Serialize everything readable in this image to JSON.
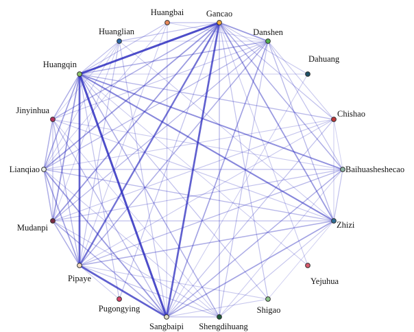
{
  "nodes": [
    {
      "id": "gancao",
      "label": "Gancao",
      "color": "#f2a93b"
    },
    {
      "id": "danshen",
      "label": "Danshen",
      "color": "#53b04f"
    },
    {
      "id": "dahuang",
      "label": "Dahuang",
      "color": "#1d4f66"
    },
    {
      "id": "chishao",
      "label": "Chishao",
      "color": "#c0393b"
    },
    {
      "id": "baihuasheshecao",
      "label": "Baihuasheshecao",
      "color": "#8fb7a6"
    },
    {
      "id": "zhizi",
      "label": "Zhizi",
      "color": "#2f6f95"
    },
    {
      "id": "yejuhua",
      "label": "Yejuhua",
      "color": "#d85a6c"
    },
    {
      "id": "shigao",
      "label": "Shigao",
      "color": "#8cc48c"
    },
    {
      "id": "shengdihuang",
      "label": "Shengdihuang",
      "color": "#1f5c3c"
    },
    {
      "id": "sangbaipi",
      "label": "Sangbaipi",
      "color": "#e3e0c8"
    },
    {
      "id": "pugongying",
      "label": "Pugongying",
      "color": "#d8456a"
    },
    {
      "id": "pipaye",
      "label": "Pipaye",
      "color": "#f2dcc0"
    },
    {
      "id": "mudanpi",
      "label": "Mudanpi",
      "color": "#7a2a44"
    },
    {
      "id": "lianqiao",
      "label": "Lianqiao",
      "color": "#e8ede4"
    },
    {
      "id": "jinyinhua",
      "label": "Jinyinhua",
      "color": "#b5305c"
    },
    {
      "id": "huangqin",
      "label": "Huangqin",
      "color": "#8fc46a"
    },
    {
      "id": "huanglian",
      "label": "Huanglian",
      "color": "#2a68a8"
    },
    {
      "id": "huangbai",
      "label": "Huangbai",
      "color": "#e8885a"
    }
  ],
  "edge_color": "#2b2bbf"
}
